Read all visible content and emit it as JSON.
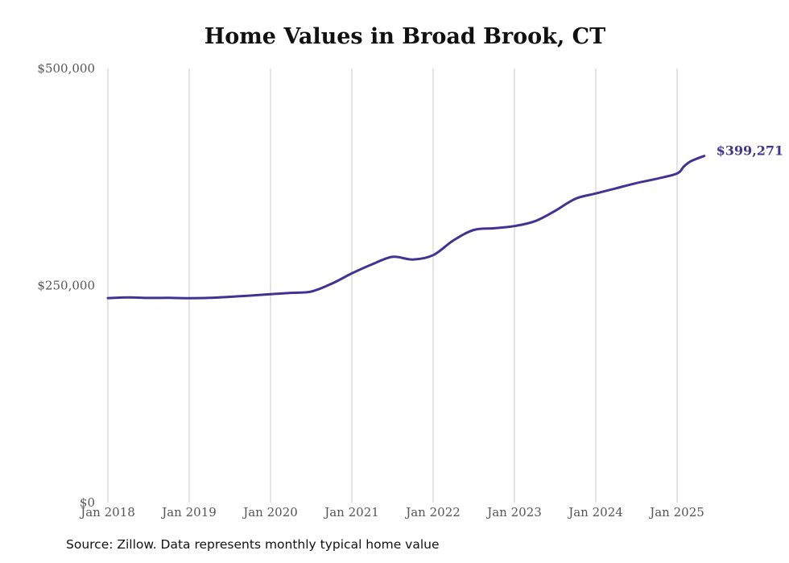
{
  "chart_data": {
    "type": "line",
    "title": "Home Values in Broad Brook, CT",
    "xlabel": "",
    "ylabel": "",
    "ylim": [
      0,
      500000
    ],
    "xlim": [
      "2018-01",
      "2025-12"
    ],
    "x_ticks": [
      "Jan 2018",
      "Jan 2019",
      "Jan 2020",
      "Jan 2021",
      "Jan 2022",
      "Jan 2023",
      "Jan 2024",
      "Jan 2025"
    ],
    "y_ticks": [
      {
        "value": 0,
        "label": "$0"
      },
      {
        "value": 250000,
        "label": "$250,000"
      },
      {
        "value": 500000,
        "label": "$500,000"
      }
    ],
    "grid": "vertical",
    "line_color": "#3f3491",
    "end_label": "$399,271",
    "series": [
      {
        "name": "",
        "points": [
          [
            "2018-01",
            235500
          ],
          [
            "2018-04",
            236300
          ],
          [
            "2018-07",
            235700
          ],
          [
            "2018-10",
            235800
          ],
          [
            "2019-01",
            235400
          ],
          [
            "2019-04",
            235800
          ],
          [
            "2019-07",
            237000
          ],
          [
            "2019-10",
            238400
          ],
          [
            "2020-01",
            240000
          ],
          [
            "2020-04",
            241600
          ],
          [
            "2020-07",
            243000
          ],
          [
            "2020-10",
            252000
          ],
          [
            "2021-01",
            264000
          ],
          [
            "2021-04",
            274500
          ],
          [
            "2021-07",
            283000
          ],
          [
            "2021-10",
            280000
          ],
          [
            "2022-01",
            285000
          ],
          [
            "2022-04",
            302000
          ],
          [
            "2022-07",
            314000
          ],
          [
            "2022-10",
            316000
          ],
          [
            "2023-01",
            318500
          ],
          [
            "2023-04",
            324000
          ],
          [
            "2023-07",
            336000
          ],
          [
            "2023-10",
            350000
          ],
          [
            "2024-01",
            356000
          ],
          [
            "2024-04",
            362000
          ],
          [
            "2024-07",
            368000
          ],
          [
            "2024-10",
            373000
          ],
          [
            "2025-01",
            379000
          ],
          [
            "2025-02",
            387000
          ],
          [
            "2025-03",
            393000
          ],
          [
            "2025-05",
            399271
          ]
        ]
      }
    ]
  },
  "source_text": "Source: Zillow. Data represents monthly typical home value"
}
